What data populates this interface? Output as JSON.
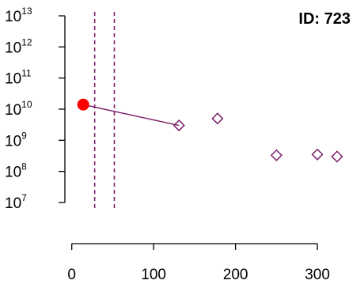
{
  "chart_data": {
    "type": "scatter",
    "id_label": "ID: 723",
    "ylog": true,
    "xlim": [
      -20,
      355
    ],
    "ylim_exp": [
      7,
      13
    ],
    "x_ticks": [
      0,
      100,
      200,
      300
    ],
    "y_ticks": [
      {
        "base": "10",
        "exp": "7"
      },
      {
        "base": "10",
        "exp": "8"
      },
      {
        "base": "10",
        "exp": "9"
      },
      {
        "base": "10",
        "exp": "10"
      },
      {
        "base": "10",
        "exp": "11"
      },
      {
        "base": "10",
        "exp": "12"
      },
      {
        "base": "10",
        "exp": "13"
      }
    ],
    "reference_point": {
      "x": 14,
      "y": 14000000000,
      "color": "#ff0000"
    },
    "points": [
      {
        "x": 131,
        "y": 3000000000
      },
      {
        "x": 178,
        "y": 5000000000
      },
      {
        "x": 250,
        "y": 330000000
      },
      {
        "x": 300,
        "y": 350000000
      },
      {
        "x": 324,
        "y": 300000000
      }
    ],
    "connector": {
      "from_x": 14,
      "to_x": 131
    },
    "vlines": [
      28,
      52
    ],
    "series_color": "#7b1f6a"
  }
}
